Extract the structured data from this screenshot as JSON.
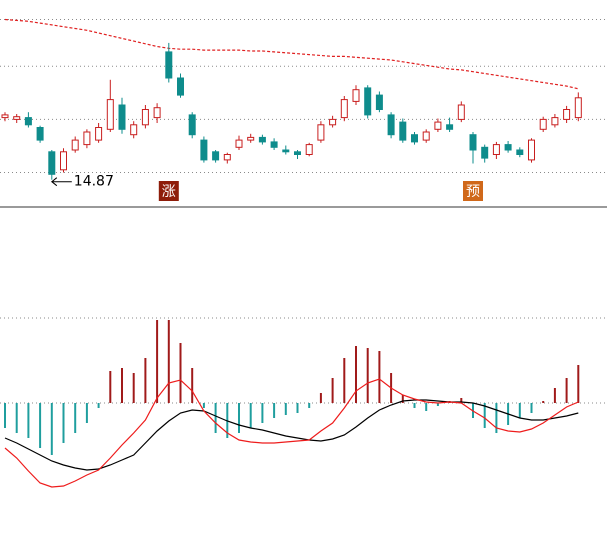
{
  "chart_data": [
    {
      "type": "candlestick",
      "open": [
        15.56,
        15.54,
        15.56,
        15.45,
        15.18,
        14.98,
        15.2,
        15.26,
        15.31,
        15.43,
        15.7,
        15.37,
        15.48,
        15.56,
        16.29,
        16.0,
        15.59,
        15.31,
        15.18,
        15.09,
        15.23,
        15.31,
        15.34,
        15.29,
        15.2,
        15.18,
        15.15,
        15.31,
        15.48,
        15.56,
        15.74,
        15.89,
        15.81,
        15.59,
        15.51,
        15.37,
        15.31,
        15.43,
        15.48,
        15.54,
        15.37,
        15.23,
        15.15,
        15.26,
        15.2,
        15.09,
        15.43,
        15.48,
        15.54,
        15.56
      ],
      "high": [
        15.62,
        15.6,
        15.62,
        15.47,
        15.2,
        15.22,
        15.35,
        15.43,
        15.5,
        15.98,
        15.78,
        15.52,
        15.7,
        15.72,
        16.39,
        16.05,
        15.62,
        15.35,
        15.2,
        15.17,
        15.36,
        15.38,
        15.37,
        15.33,
        15.25,
        15.2,
        15.28,
        15.52,
        15.58,
        15.8,
        15.92,
        15.92,
        15.85,
        15.62,
        15.55,
        15.4,
        15.43,
        15.55,
        15.56,
        15.74,
        15.4,
        15.26,
        15.29,
        15.3,
        15.23,
        15.33,
        15.57,
        15.6,
        15.69,
        15.84
      ],
      "low": [
        15.52,
        15.5,
        15.45,
        15.28,
        14.87,
        14.95,
        15.17,
        15.22,
        15.28,
        15.4,
        15.38,
        15.33,
        15.44,
        15.5,
        15.95,
        15.78,
        15.33,
        15.06,
        15.06,
        15.05,
        15.2,
        15.28,
        15.26,
        15.2,
        15.15,
        15.1,
        15.13,
        15.28,
        15.45,
        15.52,
        15.7,
        15.55,
        15.62,
        15.33,
        15.28,
        15.26,
        15.28,
        15.4,
        15.4,
        15.51,
        15.05,
        15.06,
        15.1,
        15.17,
        15.12,
        15.06,
        15.4,
        15.45,
        15.5,
        15.52
      ],
      "close": [
        15.59,
        15.57,
        15.48,
        15.31,
        14.93,
        15.18,
        15.31,
        15.4,
        15.45,
        15.76,
        15.43,
        15.48,
        15.65,
        15.67,
        16.0,
        15.81,
        15.37,
        15.09,
        15.09,
        15.15,
        15.31,
        15.34,
        15.29,
        15.23,
        15.18,
        15.15,
        15.26,
        15.48,
        15.54,
        15.76,
        15.87,
        15.59,
        15.65,
        15.37,
        15.31,
        15.29,
        15.4,
        15.51,
        15.43,
        15.7,
        15.2,
        15.11,
        15.26,
        15.2,
        15.15,
        15.31,
        15.54,
        15.56,
        15.65,
        15.78
      ],
      "line_values": [
        16.65,
        16.64,
        16.63,
        16.61,
        16.59,
        16.57,
        16.55,
        16.53,
        16.5,
        16.47,
        16.44,
        16.41,
        16.38,
        16.35,
        16.33,
        16.32,
        16.32,
        16.31,
        16.31,
        16.31,
        16.31,
        16.3,
        16.3,
        16.29,
        16.28,
        16.27,
        16.26,
        16.25,
        16.24,
        16.24,
        16.23,
        16.22,
        16.21,
        16.2,
        16.18,
        16.16,
        16.14,
        16.12,
        16.1,
        16.09,
        16.07,
        16.05,
        16.03,
        16.01,
        15.99,
        15.97,
        15.95,
        15.93,
        15.91,
        15.88
      ],
      "line_color": "#e02020",
      "up_color": "#c81e1e",
      "down_color": "#0e8c8c",
      "ylim": [
        14.6,
        16.7
      ],
      "gridlines": [
        16.65,
        16.13,
        15.54,
        14.95
      ],
      "min_label": "14.87",
      "annotations": [
        {
          "text": "涨",
          "at": 14,
          "color": "#8e1d0a"
        },
        {
          "text": "预",
          "at": 40,
          "color": "#d0681a"
        }
      ]
    },
    {
      "type": "macd",
      "hist": [
        -0.25,
        -0.3,
        -0.35,
        -0.45,
        -0.52,
        -0.4,
        -0.3,
        -0.2,
        -0.05,
        0.32,
        0.35,
        0.3,
        0.45,
        0.83,
        0.83,
        0.6,
        0.35,
        -0.05,
        -0.3,
        -0.35,
        -0.3,
        -0.25,
        -0.2,
        -0.15,
        -0.12,
        -0.1,
        -0.05,
        0.1,
        0.25,
        0.45,
        0.57,
        0.55,
        0.52,
        0.3,
        0.08,
        -0.05,
        -0.08,
        -0.03,
        0.02,
        0.05,
        -0.15,
        -0.25,
        -0.3,
        -0.22,
        -0.15,
        -0.1,
        0.02,
        0.15,
        0.25,
        0.38
      ],
      "dif": [
        -0.45,
        -0.55,
        -0.68,
        -0.8,
        -0.84,
        -0.83,
        -0.78,
        -0.72,
        -0.67,
        -0.55,
        -0.42,
        -0.3,
        -0.17,
        0.05,
        0.2,
        0.23,
        0.12,
        -0.08,
        -0.2,
        -0.3,
        -0.37,
        -0.39,
        -0.4,
        -0.4,
        -0.39,
        -0.38,
        -0.37,
        -0.28,
        -0.2,
        -0.05,
        0.12,
        0.2,
        0.24,
        0.15,
        0.08,
        0.04,
        0.01,
        0.0,
        0.01,
        0.0,
        -0.08,
        -0.15,
        -0.25,
        -0.28,
        -0.29,
        -0.26,
        -0.2,
        -0.12,
        -0.04,
        0.01
      ],
      "dea": [
        -0.35,
        -0.4,
        -0.46,
        -0.52,
        -0.58,
        -0.62,
        -0.65,
        -0.67,
        -0.66,
        -0.62,
        -0.57,
        -0.52,
        -0.4,
        -0.28,
        -0.18,
        -0.1,
        -0.07,
        -0.08,
        -0.13,
        -0.18,
        -0.22,
        -0.25,
        -0.27,
        -0.3,
        -0.33,
        -0.35,
        -0.37,
        -0.38,
        -0.36,
        -0.32,
        -0.24,
        -0.15,
        -0.07,
        -0.02,
        0.02,
        0.03,
        0.03,
        0.02,
        0.01,
        0.01,
        0.0,
        -0.03,
        -0.07,
        -0.11,
        -0.15,
        -0.17,
        -0.17,
        -0.15,
        -0.13,
        -0.1
      ],
      "pos_color": "#a01a1a",
      "neg_color": "#1f9e9e",
      "dif_color": "#ee1c1c",
      "dea_color": "#000000",
      "ylim": [
        -1.36,
        1.93
      ],
      "gridlines": [
        0.85,
        0
      ]
    }
  ]
}
